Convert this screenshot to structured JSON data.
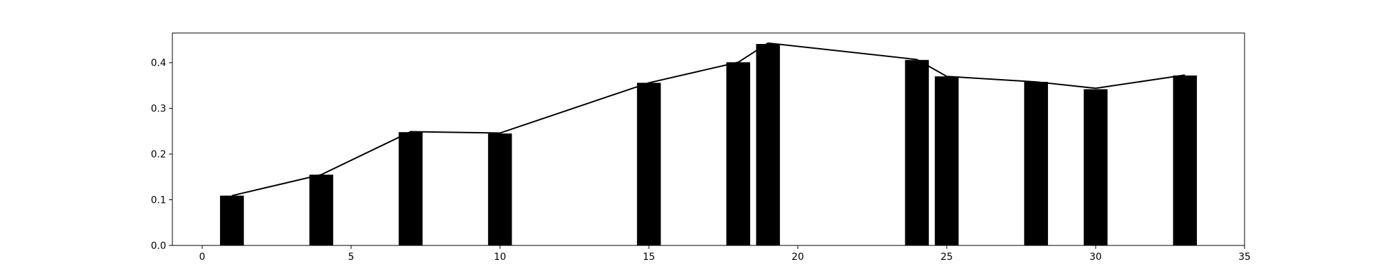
{
  "chart_data": {
    "type": "bar",
    "title": "",
    "xlabel": "",
    "ylabel": "",
    "xlim": [
      -1,
      35
    ],
    "ylim": [
      0,
      0.465
    ],
    "bar_width": 0.8,
    "x_ticks": [
      0,
      5,
      10,
      15,
      20,
      25,
      30,
      35
    ],
    "y_ticks": [
      0.0,
      0.1,
      0.2,
      0.3,
      0.4
    ],
    "x_tick_labels": [
      "0",
      "5",
      "10",
      "15",
      "20",
      "25",
      "30",
      "35"
    ],
    "y_tick_labels": [
      "0.0",
      "0.1",
      "0.2",
      "0.3",
      "0.4"
    ],
    "grid": false,
    "legend": "none",
    "bar_color": "#000000",
    "line_color": "#000000",
    "x": [
      1,
      4,
      7,
      10,
      15,
      18,
      19,
      24,
      25,
      28,
      30,
      33
    ],
    "values": [
      0.109,
      0.155,
      0.248,
      0.245,
      0.356,
      0.401,
      0.441,
      0.406,
      0.37,
      0.358,
      0.342,
      0.372
    ],
    "line_values": [
      0.109,
      0.155,
      0.249,
      0.246,
      0.356,
      0.401,
      0.443,
      0.407,
      0.37,
      0.358,
      0.344,
      0.373
    ]
  }
}
